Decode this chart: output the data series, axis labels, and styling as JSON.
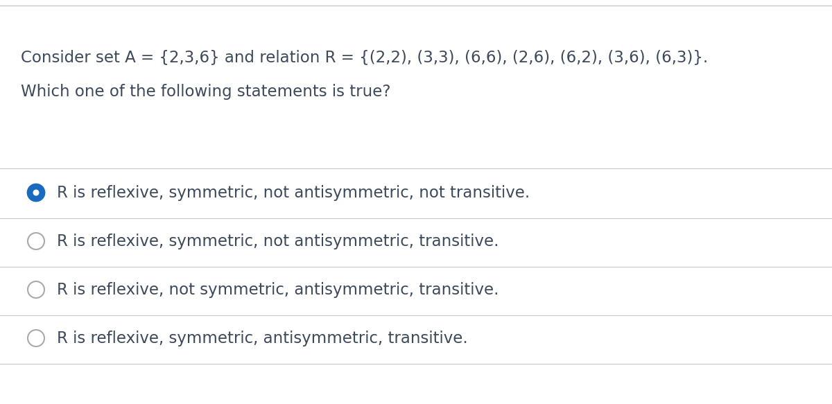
{
  "background_color": "#ffffff",
  "top_border_color": "#c8c8c8",
  "divider_color": "#c8c8c8",
  "question_line1": "Consider set A = {2,3,6} and relation R = {(2,2), (3,3), (6,6), (2,6), (6,2), (3,6), (6,3)}.",
  "question_line2": "Which one of the following statements is true?",
  "options": [
    "R is reflexive, symmetric, not antisymmetric, not transitive.",
    "R is reflexive, symmetric, not antisymmetric, transitive.",
    "R is reflexive, not symmetric, antisymmetric, transitive.",
    "R is reflexive, symmetric, antisymmetric, transitive."
  ],
  "selected_option": 0,
  "text_color": "#3d4a5c",
  "radio_color_selected_fill": "#1a6bbf",
  "radio_color_selected_border": "#1a6bbf",
  "radio_color_unselected": "#aaaaaa",
  "font_size_question": 16.5,
  "font_size_options": 16.5
}
